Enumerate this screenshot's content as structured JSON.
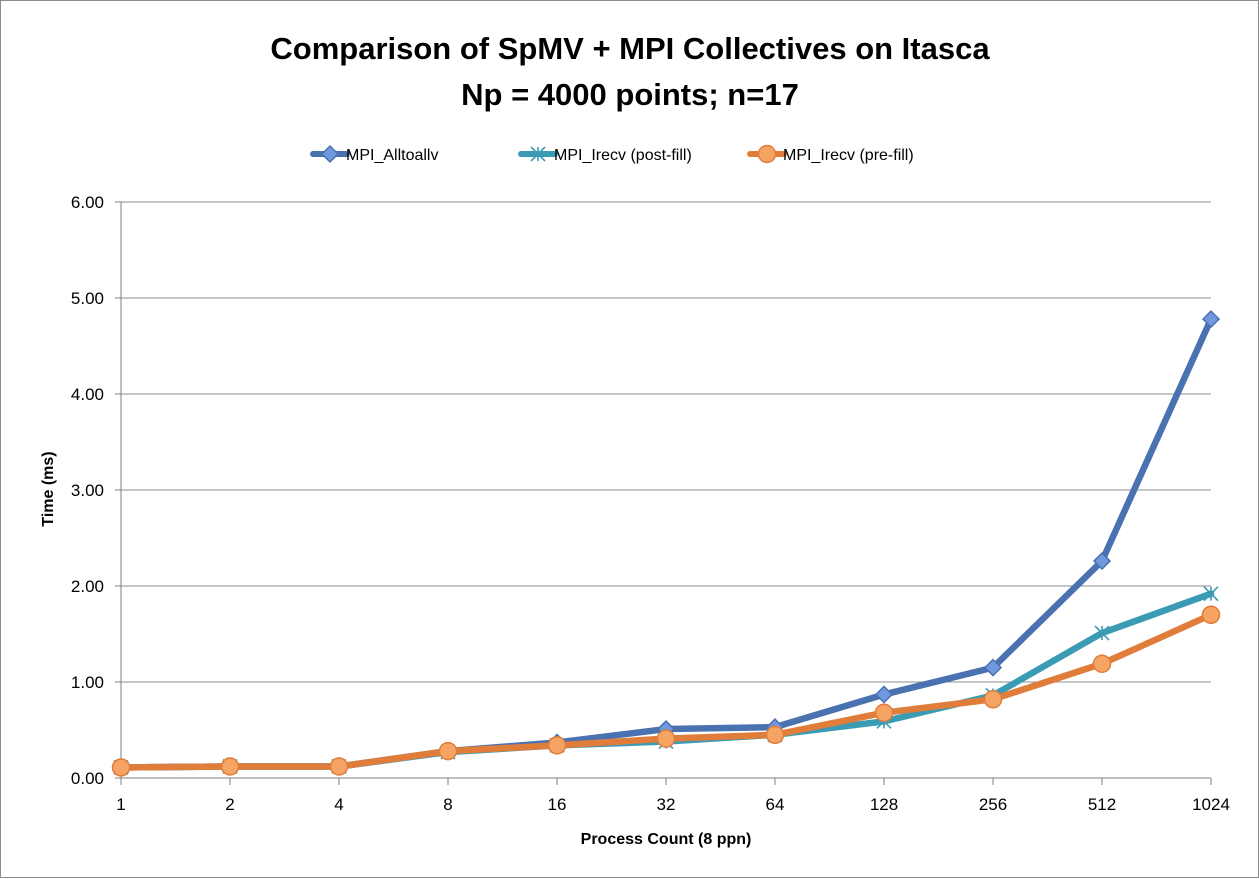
{
  "chart_data": {
    "type": "line",
    "title": "Comparison of SpMV + MPI Collectives on Itasca",
    "subtitle": "Np = 4000 points; n=17",
    "xlabel": "Process Count (8 ppn)",
    "ylabel": "Time (ms)",
    "categories": [
      "1",
      "2",
      "4",
      "8",
      "16",
      "32",
      "64",
      "128",
      "256",
      "512",
      "1024"
    ],
    "ylim": [
      0,
      6
    ],
    "yticks": [
      "0.00",
      "1.00",
      "2.00",
      "3.00",
      "4.00",
      "5.00",
      "6.00"
    ],
    "grid": true,
    "legend_position": "top",
    "series": [
      {
        "name": "MPI_Alltoallv",
        "color": "#4a72b0",
        "marker": "diamond",
        "marker_fill": "#6f98de",
        "values": [
          0.11,
          0.12,
          0.12,
          0.28,
          0.37,
          0.51,
          0.53,
          0.87,
          1.15,
          2.26,
          4.78
        ]
      },
      {
        "name": "MPI_Irecv (post-fill)",
        "color": "#3b9bb5",
        "marker": "star",
        "marker_fill": "#3b9bb5",
        "values": [
          0.11,
          0.12,
          0.12,
          0.27,
          0.34,
          0.38,
          0.45,
          0.59,
          0.86,
          1.51,
          1.92
        ]
      },
      {
        "name": "MPI_Irecv (pre-fill)",
        "color": "#e07d3a",
        "marker": "circle",
        "marker_fill": "#f6a464",
        "values": [
          0.11,
          0.12,
          0.12,
          0.28,
          0.34,
          0.41,
          0.45,
          0.68,
          0.82,
          1.19,
          1.7
        ]
      }
    ]
  }
}
